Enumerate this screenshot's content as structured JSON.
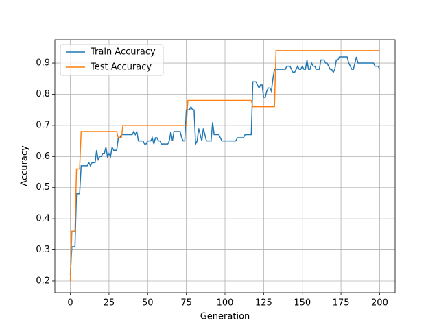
{
  "chart_data": {
    "type": "line",
    "xlabel": "Generation",
    "ylabel": "Accuracy",
    "x": [
      0,
      1,
      2,
      3,
      4,
      5,
      6,
      7,
      8,
      9,
      10,
      11,
      12,
      13,
      14,
      15,
      16,
      17,
      18,
      19,
      20,
      21,
      22,
      23,
      24,
      25,
      26,
      27,
      28,
      29,
      30,
      31,
      32,
      33,
      34,
      35,
      36,
      37,
      38,
      39,
      40,
      41,
      42,
      43,
      44,
      45,
      46,
      47,
      48,
      49,
      50,
      51,
      52,
      53,
      54,
      55,
      56,
      57,
      58,
      59,
      60,
      61,
      62,
      63,
      64,
      65,
      66,
      67,
      68,
      69,
      70,
      71,
      72,
      73,
      74,
      75,
      76,
      77,
      78,
      79,
      80,
      81,
      82,
      83,
      84,
      85,
      86,
      87,
      88,
      89,
      90,
      91,
      92,
      93,
      94,
      95,
      96,
      97,
      98,
      99,
      100,
      101,
      102,
      103,
      104,
      105,
      106,
      107,
      108,
      109,
      110,
      111,
      112,
      113,
      114,
      115,
      116,
      117,
      118,
      119,
      120,
      121,
      122,
      123,
      124,
      125,
      126,
      127,
      128,
      129,
      130,
      131,
      132,
      133,
      134,
      135,
      136,
      137,
      138,
      139,
      140,
      141,
      142,
      143,
      144,
      145,
      146,
      147,
      148,
      149,
      150,
      151,
      152,
      153,
      154,
      155,
      156,
      157,
      158,
      159,
      160,
      161,
      162,
      163,
      164,
      165,
      166,
      167,
      168,
      169,
      170,
      171,
      172,
      173,
      174,
      175,
      176,
      177,
      178,
      179,
      180,
      181,
      182,
      183,
      184,
      185,
      186,
      187,
      188,
      189,
      190,
      191,
      192,
      193,
      194,
      195,
      196,
      197,
      198,
      199,
      200
    ],
    "series": [
      {
        "name": "Train Accuracy",
        "color": "#1f77b4",
        "values": [
          0.22,
          0.31,
          0.31,
          0.31,
          0.48,
          0.48,
          0.48,
          0.57,
          0.57,
          0.57,
          0.57,
          0.57,
          0.58,
          0.57,
          0.58,
          0.58,
          0.58,
          0.62,
          0.59,
          0.6,
          0.6,
          0.61,
          0.61,
          0.63,
          0.6,
          0.61,
          0.6,
          0.63,
          0.62,
          0.62,
          0.62,
          0.66,
          0.66,
          0.67,
          0.67,
          0.67,
          0.67,
          0.67,
          0.67,
          0.67,
          0.67,
          0.68,
          0.67,
          0.68,
          0.65,
          0.65,
          0.65,
          0.65,
          0.64,
          0.64,
          0.65,
          0.65,
          0.65,
          0.66,
          0.64,
          0.66,
          0.66,
          0.65,
          0.65,
          0.64,
          0.64,
          0.64,
          0.64,
          0.64,
          0.65,
          0.68,
          0.65,
          0.68,
          0.68,
          0.68,
          0.68,
          0.68,
          0.66,
          0.65,
          0.65,
          0.75,
          0.75,
          0.75,
          0.76,
          0.75,
          0.75,
          0.64,
          0.65,
          0.69,
          0.67,
          0.65,
          0.69,
          0.67,
          0.65,
          0.65,
          0.65,
          0.65,
          0.71,
          0.67,
          0.67,
          0.67,
          0.67,
          0.66,
          0.65,
          0.65,
          0.65,
          0.65,
          0.65,
          0.65,
          0.65,
          0.65,
          0.65,
          0.65,
          0.66,
          0.66,
          0.66,
          0.66,
          0.66,
          0.67,
          0.67,
          0.67,
          0.67,
          0.67,
          0.84,
          0.84,
          0.84,
          0.83,
          0.82,
          0.83,
          0.83,
          0.79,
          0.79,
          0.81,
          0.82,
          0.82,
          0.81,
          0.85,
          0.88,
          0.88,
          0.88,
          0.88,
          0.88,
          0.88,
          0.88,
          0.88,
          0.89,
          0.89,
          0.89,
          0.88,
          0.87,
          0.87,
          0.88,
          0.89,
          0.88,
          0.88,
          0.89,
          0.88,
          0.88,
          0.91,
          0.88,
          0.88,
          0.9,
          0.89,
          0.89,
          0.88,
          0.88,
          0.88,
          0.91,
          0.91,
          0.91,
          0.9,
          0.9,
          0.89,
          0.88,
          0.88,
          0.87,
          0.88,
          0.91,
          0.91,
          0.92,
          0.92,
          0.92,
          0.92,
          0.92,
          0.92,
          0.9,
          0.89,
          0.88,
          0.88,
          0.9,
          0.92,
          0.9,
          0.9,
          0.9,
          0.9,
          0.9,
          0.9,
          0.9,
          0.9,
          0.9,
          0.9,
          0.9,
          0.89,
          0.89,
          0.89,
          0.88
        ]
      },
      {
        "name": "Test Accuracy",
        "color": "#ff7f0e",
        "values": [
          0.2,
          0.36,
          0.36,
          0.36,
          0.56,
          0.56,
          0.56,
          0.68,
          0.68,
          0.68,
          0.68,
          0.68,
          0.68,
          0.68,
          0.68,
          0.68,
          0.68,
          0.68,
          0.68,
          0.68,
          0.68,
          0.68,
          0.68,
          0.68,
          0.68,
          0.68,
          0.68,
          0.68,
          0.68,
          0.68,
          0.68,
          0.66,
          0.66,
          0.66,
          0.7,
          0.7,
          0.7,
          0.7,
          0.7,
          0.7,
          0.7,
          0.7,
          0.7,
          0.7,
          0.7,
          0.7,
          0.7,
          0.7,
          0.7,
          0.7,
          0.7,
          0.7,
          0.7,
          0.7,
          0.7,
          0.7,
          0.7,
          0.7,
          0.7,
          0.7,
          0.7,
          0.7,
          0.7,
          0.7,
          0.7,
          0.7,
          0.7,
          0.7,
          0.7,
          0.7,
          0.7,
          0.7,
          0.7,
          0.7,
          0.7,
          0.7,
          0.78,
          0.78,
          0.78,
          0.78,
          0.78,
          0.78,
          0.78,
          0.78,
          0.78,
          0.78,
          0.78,
          0.78,
          0.78,
          0.78,
          0.78,
          0.78,
          0.78,
          0.78,
          0.78,
          0.78,
          0.78,
          0.78,
          0.78,
          0.78,
          0.78,
          0.78,
          0.78,
          0.78,
          0.78,
          0.78,
          0.78,
          0.78,
          0.78,
          0.78,
          0.78,
          0.78,
          0.78,
          0.78,
          0.78,
          0.78,
          0.78,
          0.78,
          0.76,
          0.76,
          0.76,
          0.76,
          0.76,
          0.76,
          0.76,
          0.76,
          0.76,
          0.76,
          0.76,
          0.76,
          0.76,
          0.76,
          0.76,
          0.94,
          0.94,
          0.94,
          0.94,
          0.94,
          0.94,
          0.94,
          0.94,
          0.94,
          0.94,
          0.94,
          0.94,
          0.94,
          0.94,
          0.94,
          0.94,
          0.94,
          0.94,
          0.94,
          0.94,
          0.94,
          0.94,
          0.94,
          0.94,
          0.94,
          0.94,
          0.94,
          0.94,
          0.94,
          0.94,
          0.94,
          0.94,
          0.94,
          0.94,
          0.94,
          0.94,
          0.94,
          0.94,
          0.94,
          0.94,
          0.94,
          0.94,
          0.94,
          0.94,
          0.94,
          0.94,
          0.94,
          0.94,
          0.94,
          0.94,
          0.94,
          0.94,
          0.94,
          0.94,
          0.94,
          0.94,
          0.94,
          0.94,
          0.94,
          0.94,
          0.94,
          0.94,
          0.94,
          0.94,
          0.94,
          0.94,
          0.94,
          0.94
        ]
      }
    ],
    "xlim": [
      -10,
      210
    ],
    "ylim": [
      0.1625,
      0.975
    ],
    "xticks": [
      0,
      25,
      50,
      75,
      100,
      125,
      150,
      175,
      200
    ],
    "yticks": [
      0.2,
      0.3,
      0.4,
      0.5,
      0.6,
      0.7,
      0.8,
      0.9
    ],
    "grid": true,
    "legend": "upper left"
  }
}
